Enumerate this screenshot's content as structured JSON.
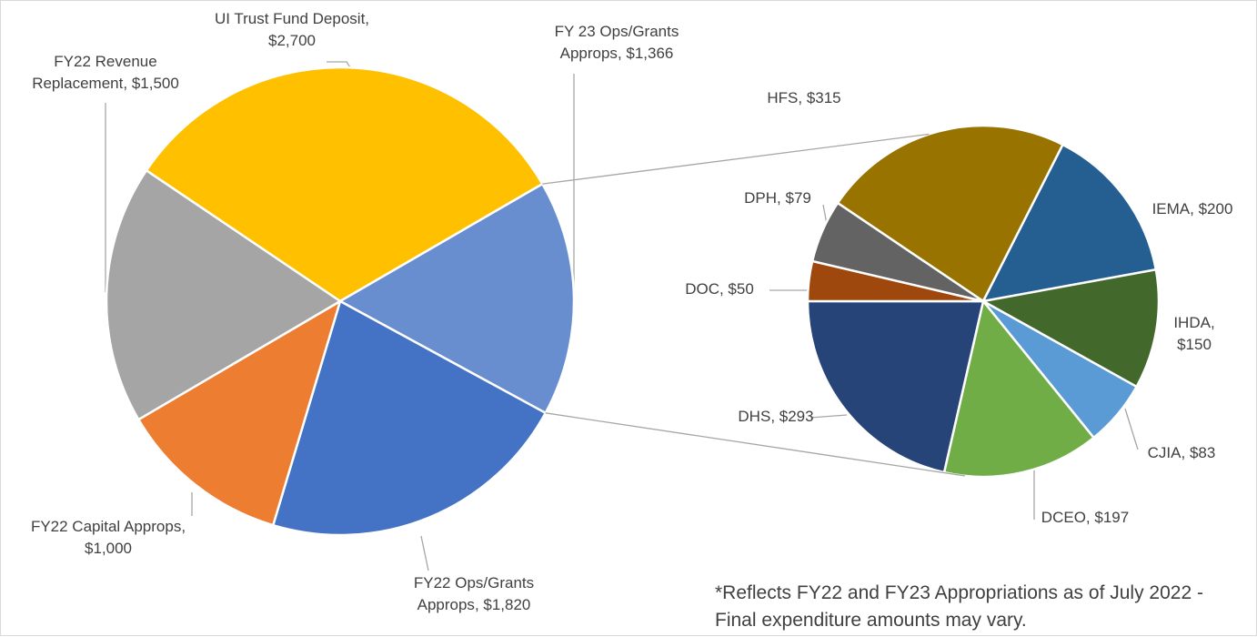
{
  "chart_data": [
    {
      "type": "pie",
      "categories": [
        "UI Trust Fund Deposit",
        "FY 23 Ops/Grants Approps",
        "FY22 Ops/Grants Approps",
        "FY22 Capital Approps",
        "FY22 Revenue Replacement"
      ],
      "values": [
        2700,
        1366,
        1820,
        1000,
        1500
      ],
      "value_labels": [
        "$2,700",
        "$1,366",
        "$1,820",
        "$1,000",
        "$1,500"
      ],
      "colors": [
        "#ffc000",
        "#698ed0",
        "#4472c4",
        "#ed7d31",
        "#a5a5a5"
      ],
      "annotation": "*Reflects FY22 and FY23 Appropriations as of July 2022 - Final expenditure amounts may vary."
    },
    {
      "type": "pie",
      "categories": [
        "HFS",
        "IEMA",
        "IHDA",
        "CJIA",
        "DCEO",
        "DHS",
        "DOC",
        "DPH"
      ],
      "values": [
        315,
        200,
        150,
        83,
        197,
        293,
        50,
        79
      ],
      "value_labels": [
        "$315",
        "$200",
        "$150",
        "$83",
        "$197",
        "$293",
        "$50",
        "$79"
      ],
      "colors": [
        "#997300",
        "#255e91",
        "#43682b",
        "#5b9bd5",
        "#70ad47",
        "#264478",
        "#9e480e",
        "#636363"
      ]
    }
  ]
}
